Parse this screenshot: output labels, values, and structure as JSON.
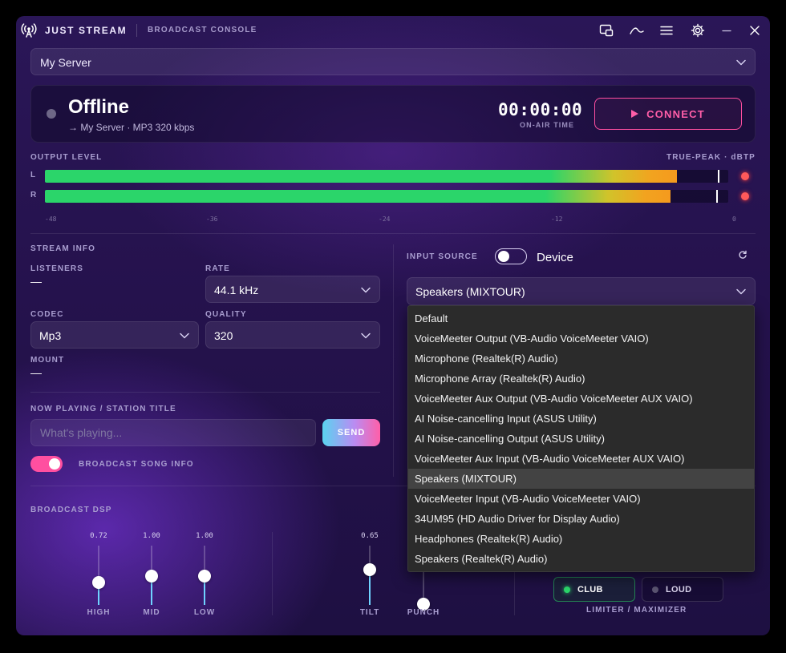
{
  "app": {
    "name": "JUST STREAM",
    "subtitle": "BROADCAST CONSOLE"
  },
  "titlebar": {
    "buttons": [
      "screens-icon",
      "curve-icon",
      "menu-icon",
      "gear-icon",
      "minimize-icon",
      "close-icon"
    ]
  },
  "server": {
    "selected": "My Server"
  },
  "status": {
    "state": "Offline",
    "detail": "→ My Server · MP3 320 kbps",
    "timer": "00:00:00",
    "timer_label": "ON-AIR TIME",
    "connect_label": "CONNECT",
    "accent": "#ff5ea8"
  },
  "output_level": {
    "label": "OUTPUT LEVEL",
    "mode": "TRUE-PEAK · dBTP",
    "channels": [
      {
        "name": "L",
        "level": 0.925,
        "peak": 0.985
      },
      {
        "name": "R",
        "level": 0.915,
        "peak": 0.982
      }
    ],
    "scale": [
      "-48",
      "-36",
      "-24",
      "-12",
      "0"
    ]
  },
  "stream_info": {
    "title": "STREAM INFO",
    "listeners_label": "LISTENERS",
    "listeners_value": "—",
    "rate_label": "RATE",
    "rate_value": "44.1 kHz",
    "codec_label": "CODEC",
    "codec_value": "Mp3",
    "quality_label": "QUALITY",
    "quality_value": "320",
    "mount_label": "MOUNT",
    "mount_value": "—"
  },
  "now_playing": {
    "label": "NOW PLAYING / STATION TITLE",
    "placeholder": "What's playing...",
    "send_label": "SEND",
    "broadcast_label": "BROADCAST SONG INFO",
    "broadcast_on": true
  },
  "input_source": {
    "label": "INPUT SOURCE",
    "mode_label": "Device",
    "selected": "Speakers (MIXTOUR)",
    "options": [
      "Default",
      "VoiceMeeter Output (VB-Audio VoiceMeeter VAIO)",
      "Microphone (Realtek(R) Audio)",
      "Microphone Array (Realtek(R) Audio)",
      "VoiceMeeter Aux Output (VB-Audio VoiceMeeter AUX VAIO)",
      "AI Noise-cancelling Input (ASUS Utility)",
      "AI Noise-cancelling Output (ASUS Utility)",
      "VoiceMeeter Aux Input (VB-Audio VoiceMeeter AUX VAIO)",
      "Speakers (MIXTOUR)",
      "VoiceMeeter Input (VB-Audio VoiceMeeter VAIO)",
      "34UM95 (HD Audio Driver for Display Audio)",
      "Headphones (Realtek(R) Audio)",
      "Speakers (Realtek(R) Audio)"
    ]
  },
  "dsp": {
    "label": "BROADCAST DSP",
    "eq": [
      {
        "name": "HIGH",
        "value": "0.72",
        "level": 0.38
      },
      {
        "name": "MID",
        "value": "1.00",
        "level": 0.49
      },
      {
        "name": "LOW",
        "value": "1.00",
        "level": 0.49
      }
    ],
    "tilt": {
      "name": "TILT",
      "value": "0.65",
      "level": 0.6
    },
    "punch": {
      "name": "PUNCH",
      "level": 0.02
    },
    "limiter": {
      "label": "LIMITER / MAXIMIZER",
      "modes": [
        {
          "name": "CLUB",
          "active": true,
          "color": "#2bd56a"
        },
        {
          "name": "LOUD",
          "active": false,
          "color": "#5a5470"
        }
      ]
    }
  }
}
